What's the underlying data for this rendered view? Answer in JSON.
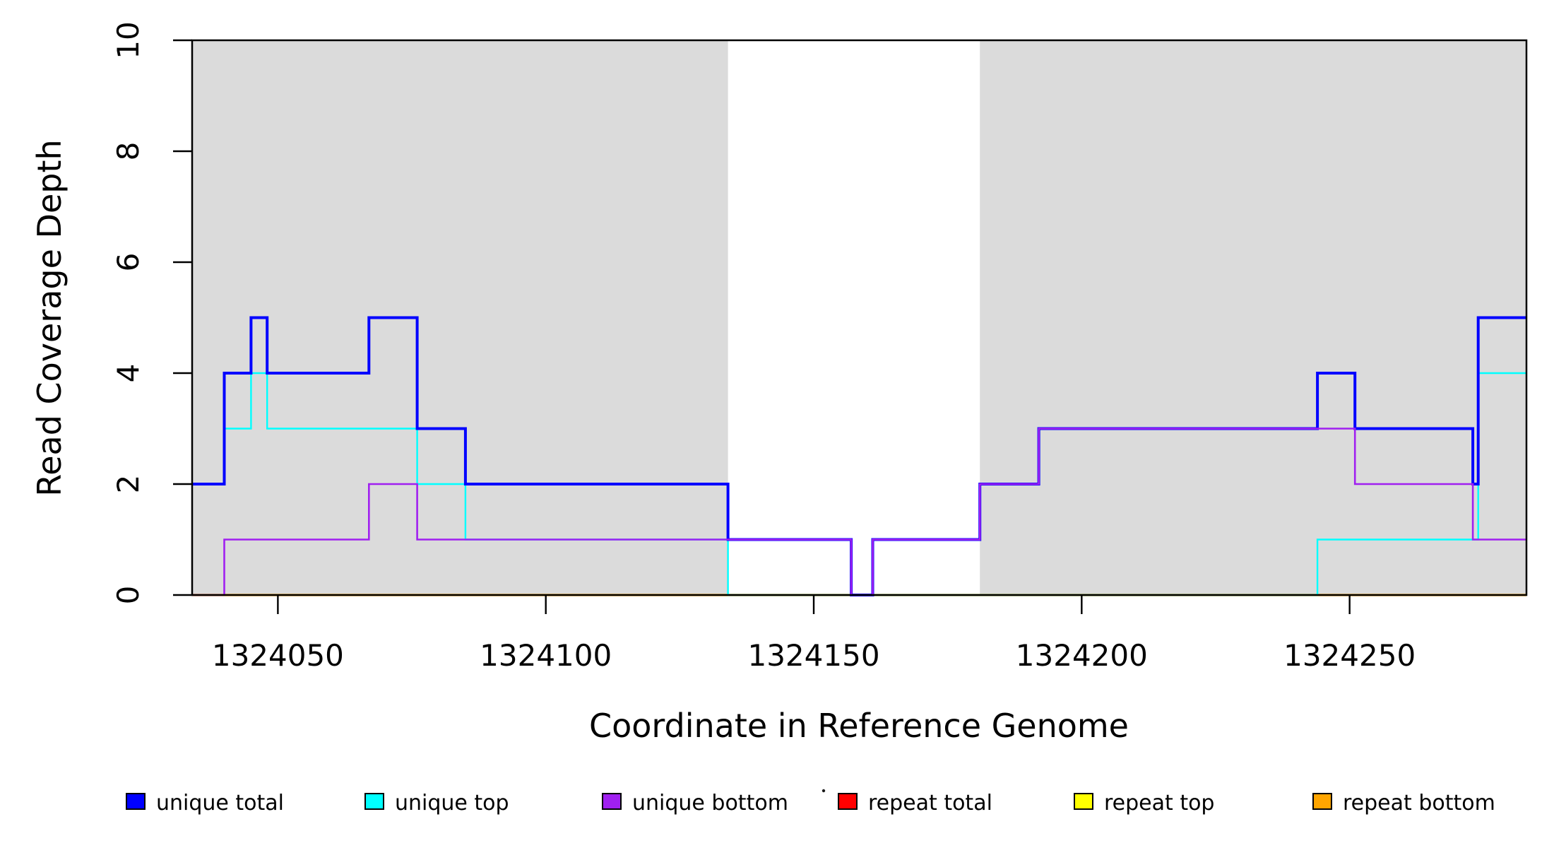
{
  "figure": {
    "background": "#ffffff",
    "plot_background_unshaded": "#ffffff"
  },
  "chart_data": {
    "type": "line",
    "subtype": "step-coverage-plot",
    "xlabel": "Coordinate in Reference Genome",
    "ylabel": "Read Coverage Depth",
    "xlim": [
      1324034,
      1324283
    ],
    "ylim": [
      0,
      10
    ],
    "x_ticks": [
      1324050,
      1324100,
      1324150,
      1324200,
      1324250
    ],
    "x_tick_labels": [
      "1324050",
      "1324100",
      "1324150",
      "1324200",
      "1324250"
    ],
    "y_ticks": [
      0,
      2,
      4,
      6,
      8,
      10
    ],
    "y_tick_labels": [
      "0",
      "2",
      "4",
      "6",
      "8",
      "10"
    ],
    "grid": false,
    "box": true,
    "box_color": "#000000",
    "shaded_regions": {
      "color": "#DBDBDB",
      "ranges": [
        [
          1324034,
          1324134
        ],
        [
          1324181,
          1324283
        ]
      ]
    },
    "series": [
      {
        "name": "unique total",
        "color": "#0000FF",
        "line_width": 4,
        "end_x": 1324283,
        "steps": [
          [
            1324034,
            2
          ],
          [
            1324040,
            4
          ],
          [
            1324045,
            5
          ],
          [
            1324048,
            4
          ],
          [
            1324067,
            5
          ],
          [
            1324076,
            3
          ],
          [
            1324085,
            2
          ],
          [
            1324134,
            1
          ],
          [
            1324157,
            0
          ],
          [
            1324161,
            1
          ],
          [
            1324181,
            2
          ],
          [
            1324192,
            3
          ],
          [
            1324244,
            4
          ],
          [
            1324251,
            3
          ],
          [
            1324273,
            2
          ],
          [
            1324274,
            5
          ]
        ]
      },
      {
        "name": "unique top",
        "color": "#00FFFF",
        "line_width": 2.4,
        "end_x": 1324283,
        "steps": [
          [
            1324034,
            2
          ],
          [
            1324040,
            3
          ],
          [
            1324045,
            4
          ],
          [
            1324048,
            3
          ],
          [
            1324076,
            2
          ],
          [
            1324085,
            1
          ],
          [
            1324134,
            0
          ],
          [
            1324244,
            1
          ],
          [
            1324274,
            4
          ]
        ]
      },
      {
        "name": "unique bottom",
        "color": "#A020F0",
        "line_width": 2.6,
        "end_x": 1324283,
        "steps": [
          [
            1324034,
            0
          ],
          [
            1324040,
            1
          ],
          [
            1324067,
            2
          ],
          [
            1324076,
            1
          ],
          [
            1324157,
            0
          ],
          [
            1324161,
            1
          ],
          [
            1324181,
            2
          ],
          [
            1324192,
            3
          ],
          [
            1324251,
            2
          ],
          [
            1324273,
            1
          ]
        ]
      },
      {
        "name": "repeat total",
        "color": "#FF0000",
        "line_width": 2.4,
        "end_x": 1324283,
        "steps": [
          [
            1324034,
            0
          ]
        ]
      },
      {
        "name": "repeat top",
        "color": "#FFFF00",
        "line_width": 2.4,
        "end_x": 1324283,
        "steps": [
          [
            1324034,
            0
          ]
        ]
      },
      {
        "name": "repeat bottom",
        "color": "#FFA500",
        "line_width": 3.2,
        "end_x": 1324283,
        "steps": [
          [
            1324034,
            0
          ]
        ]
      }
    ],
    "draw_order": [
      "repeat total",
      "repeat top",
      "repeat bottom",
      "unique top",
      "unique total",
      "unique bottom"
    ],
    "legend": {
      "position": "bottom",
      "items": [
        {
          "label": "unique total",
          "color": "#0000FF"
        },
        {
          "label": "unique top",
          "color": "#00FFFF"
        },
        {
          "label": "unique bottom",
          "color": "#A020F0"
        },
        {
          "label": "repeat total",
          "color": "#FF0000"
        },
        {
          "label": "repeat top",
          "color": "#FFFF00"
        },
        {
          "label": "repeat bottom",
          "color": "#FFA500"
        }
      ]
    },
    "annotations": {
      "stray_dot_present": true
    }
  }
}
